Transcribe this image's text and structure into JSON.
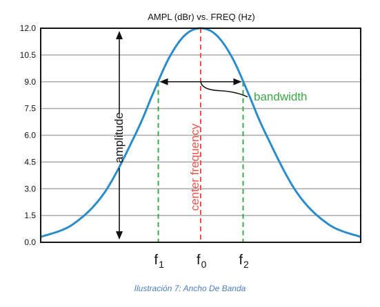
{
  "chart_data": {
    "type": "line",
    "title": "AMPL (dBr) vs. FREQ (Hz)",
    "ylim": [
      0,
      12
    ],
    "yticks": [
      "0.0",
      "1.5",
      "3.0",
      "4.5",
      "6.0",
      "7.5",
      "9.0",
      "10.5",
      "12.0"
    ],
    "ytick_values": [
      0,
      1.5,
      3,
      4.5,
      6,
      7.5,
      9,
      10.5,
      12
    ],
    "grid": true,
    "series": [
      {
        "color": "#2a8cc9",
        "x": [
          -1.0,
          -0.8,
          -0.6,
          -0.4,
          -0.3,
          -0.2,
          -0.1,
          0.0,
          0.1,
          0.2,
          0.3,
          0.4,
          0.6,
          0.8,
          1.0
        ],
        "y": [
          0.3,
          1.0,
          2.8,
          6.2,
          8.3,
          10.3,
          11.6,
          12.0,
          11.6,
          10.3,
          8.3,
          6.2,
          2.8,
          1.0,
          0.3
        ]
      }
    ],
    "markers": {
      "f1": {
        "main": "f",
        "sub": "1"
      },
      "f0": {
        "main": "f",
        "sub": "0"
      },
      "f2": {
        "main": "f",
        "sub": "2"
      }
    },
    "annotations": {
      "amplitude": "amplitude",
      "center_frequency": "center frequency",
      "bandwidth": "bandwidth",
      "bandwidth_level": 9.0
    },
    "colors": {
      "curve": "#2a8cc9",
      "center_line": "#e8554e",
      "center_label": "#e8554e",
      "bandwidth_line": "#3aa845",
      "bandwidth_label": "#3aa845",
      "grid": "#a9a9a9",
      "axis": "#111111"
    }
  },
  "caption": "Ilustración 7: Ancho De Banda"
}
